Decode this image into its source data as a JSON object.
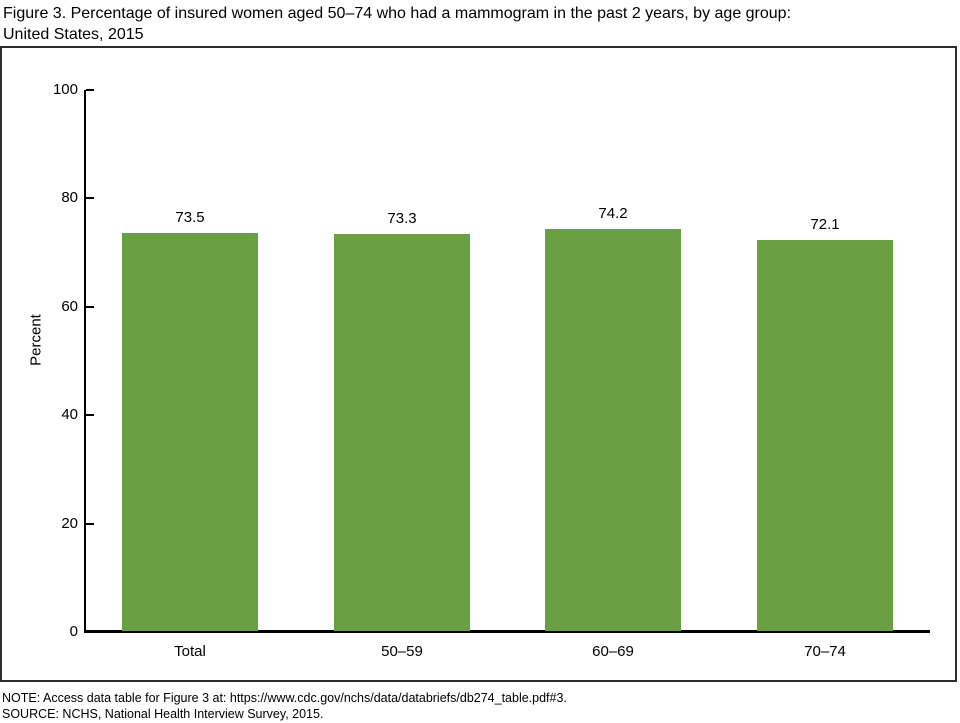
{
  "figure": {
    "title_line1": "Figure 3. Percentage of insured women aged 50–74 who had a mammogram in the past 2 years, by age group:",
    "title_line2": "United States, 2015"
  },
  "chart_data": {
    "type": "bar",
    "title": "Figure 3. Percentage of insured women aged 50–74 who had a mammogram in the past 2 years, by age group: United States, 2015",
    "categories": [
      "Total",
      "50–59",
      "60–69",
      "70–74"
    ],
    "values": [
      73.5,
      73.3,
      74.2,
      72.1
    ],
    "data_labels": [
      "73.5",
      "73.3",
      "74.2",
      "72.1"
    ],
    "xlabel": "",
    "ylabel": "Percent",
    "ylim": [
      0,
      100
    ],
    "yticks": [
      0,
      20,
      40,
      60,
      80,
      100
    ],
    "grid": false,
    "legend_position": "none",
    "bar_color": "#6b9f44",
    "axis_color": "#000000"
  },
  "footer": {
    "note": "NOTE: Access data table for Figure 3 at: https://www.cdc.gov/nchs/data/databriefs/db274_table.pdf#3.",
    "source": "SOURCE: NCHS, National Health Interview Survey, 2015."
  }
}
